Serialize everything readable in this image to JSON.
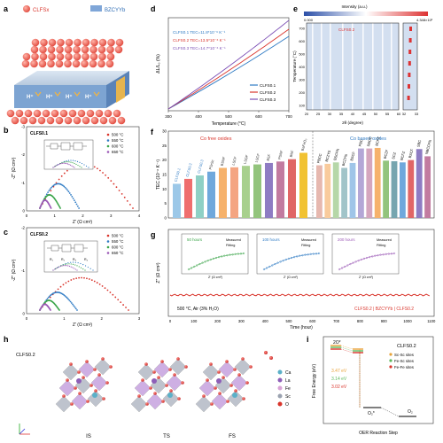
{
  "panels": {
    "a": "a",
    "b": "b",
    "c": "c",
    "d": "d",
    "e": "e",
    "f": "f",
    "g": "g",
    "h": "h",
    "i": "i"
  },
  "a": {
    "legend_cathode": "CLFSx",
    "legend_electrolyte": "BZCYYb",
    "proton_label": "H⁺"
  },
  "b": {
    "title": "CLFS0.1",
    "xlabel": "Z' (Ω cm²)",
    "ylabel": "-Z'' (Ω cm²)",
    "xticks": [
      "0",
      "1",
      "2",
      "3",
      "4"
    ],
    "yticks": [
      "0",
      "-1",
      "-2",
      "-3"
    ],
    "legend": [
      "500 °C",
      "550 °C",
      "600 °C",
      "650 °C"
    ],
    "inset_xticks": [
      "0.0",
      "0.1",
      "0.2",
      "0.3"
    ],
    "inset_ylabel": "-Z'' (Ω cm²)",
    "inset_xlabel": "Z' (Ω cm²)"
  },
  "c": {
    "title": "CLFS0.2",
    "xlabel": "Z' (Ω cm²)",
    "ylabel": "-Z'' (Ω cm²)",
    "xticks": [
      "0",
      "1",
      "2",
      "3"
    ],
    "yticks": [
      "0",
      "-1",
      "-2"
    ],
    "legend": [
      "500 °C",
      "550 °C",
      "600 °C",
      "650 °C"
    ],
    "inset_xticks": [
      "0.0",
      "0.1",
      "0.2",
      "0.3"
    ],
    "circuit": {
      "r1": "R₁",
      "r2": "R₂",
      "r3": "R₃",
      "r4": "R₄"
    }
  },
  "d": {
    "xlabel": "Temperature (°C)",
    "ylabel": "ΔL/L₀ (%)",
    "xticks": [
      "300",
      "400",
      "500",
      "600",
      "700"
    ],
    "annotations": [
      "CLFS0.1 TEC=11.8*10⁻⁶ K⁻¹",
      "CLFS0.2 TEC=13.5*10⁻⁶ K⁻¹",
      "CLFS0.3 TEC=14.7*10⁻⁶ K⁻¹"
    ],
    "legend": [
      "CLFS0.1",
      "CLFS0.2",
      "CLFS0.3"
    ]
  },
  "e": {
    "colorbar_title": "Intensity (a.u.)",
    "cb_min": "0.000",
    "cb_max": "4.348×10³",
    "sample": "CLFS0.2",
    "xlabel": "2θ (degree)",
    "ylabel": "Temperature (°C)",
    "xticks": [
      "20",
      "25",
      "30",
      "35",
      "40",
      "45",
      "50",
      "55",
      "60",
      "32",
      "33"
    ],
    "yticks": [
      "700",
      "600",
      "500",
      "400",
      "300",
      "200",
      "100"
    ]
  },
  "f": {
    "ylabel": "TEC (10⁻⁶ K⁻¹)",
    "yticks": [
      "0",
      "5",
      "10",
      "15",
      "20",
      "25",
      "30"
    ],
    "group1": "Co free oxides",
    "group2": "Co based oxides",
    "labels1": [
      "CLFS0.1",
      "CLFS0.2",
      "CLFS0.3",
      "PSrSc",
      "BSNF",
      "LSCF",
      "LSGF",
      "LSCF",
      "BSF",
      "PSNF",
      "BNF",
      "BaFeO₃"
    ],
    "labels2": [
      "PBCC",
      "BCZYS",
      "BSCFN",
      "BCZYN",
      "BSCF",
      "PBC",
      "SBCC",
      "BCFZ",
      "BCZF",
      "SCZ",
      "BCFZ",
      "BSCF",
      "SBC",
      "NBCCFN"
    ]
  },
  "g": {
    "xlabel": "Time (hour)",
    "ylabel": "Z'' (Ω cm²)",
    "xticks": [
      "0",
      "100",
      "200",
      "300",
      "400",
      "500",
      "600",
      "700",
      "800",
      "900",
      "1000",
      "1100"
    ],
    "condition": "500 °C, Air (3% H₂O)",
    "cell": "CLFS0.2 | BZCYYb | CLFS0.2",
    "insets": [
      {
        "title": "50 hours"
      },
      {
        "title": "100 hours"
      },
      {
        "title": "200 hours"
      }
    ],
    "inset_legend": [
      "Measured",
      "Fitting"
    ],
    "inset_xlabel": "Z' (Ω cm²)"
  },
  "h": {
    "title": "CLFS0.2",
    "states": [
      "IS",
      "TS",
      "FS"
    ],
    "legend": [
      "Ca",
      "La",
      "Fe",
      "Sc",
      "O"
    ]
  },
  "i": {
    "title": "CLFS0.2",
    "xlabel": "OER Reaction Step",
    "ylabel": "Free Energy (eV)",
    "top_label": "2O*",
    "mid_label": "O₂*",
    "end_label": "O₂",
    "energies": [
      "3.47 eV",
      "3.14 eV",
      "3.02 eV"
    ],
    "legend": [
      "Sc-Sc sites",
      "Fe-Sc sites",
      "Fe-Fe sites"
    ]
  },
  "colors": {
    "red": "#d9342b",
    "orange": "#f29b38",
    "blue": "#2f7bc4",
    "purple": "#9b59b6",
    "green": "#3ba54a",
    "lightblue": "#9cc8e8"
  }
}
